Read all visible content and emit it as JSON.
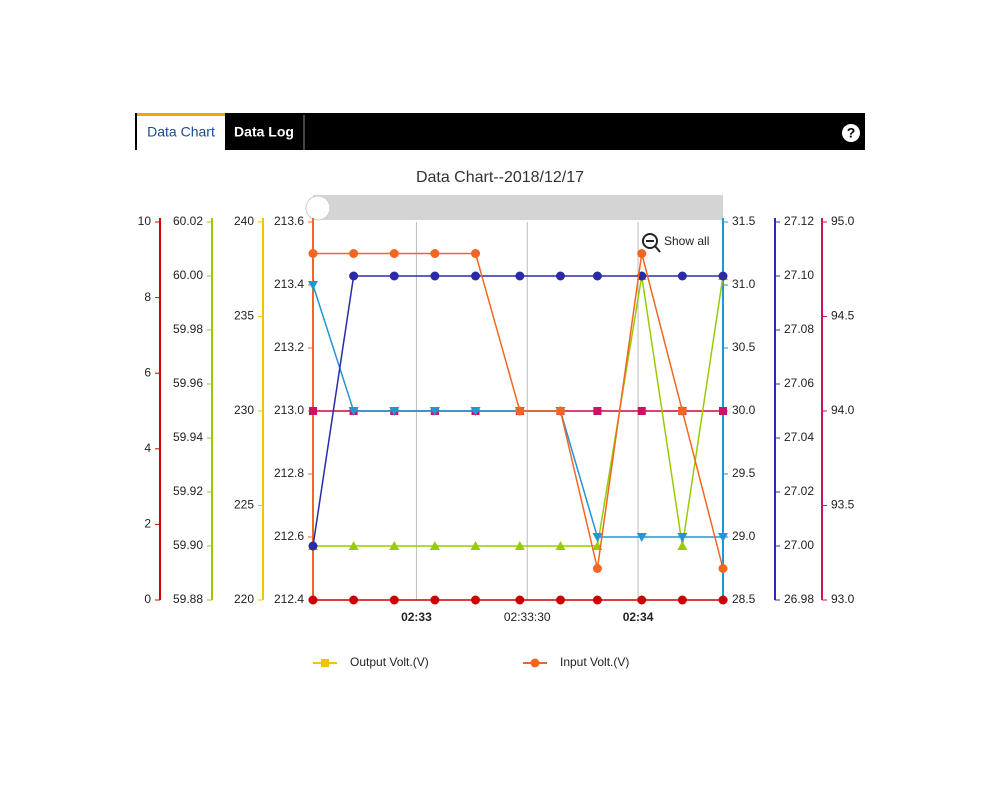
{
  "tabs": [
    "Data Chart",
    "Data Log"
  ],
  "help": "?",
  "chart_data": {
    "type": "line",
    "title": "Data Chart--2018/12/17",
    "zoom_button": "Show all",
    "x": [
      -28,
      -17,
      -6,
      5,
      16,
      28,
      39,
      49,
      61,
      72,
      83
    ],
    "xlim": [
      -28,
      83
    ],
    "xticks": [
      {
        "value": 0,
        "label": "02:33"
      },
      {
        "value": 30,
        "label": "02:33:30"
      },
      {
        "value": 60,
        "label": "02:34"
      }
    ],
    "grid": true,
    "axes": [
      {
        "side": "left",
        "color": "#cc0000",
        "ylim": [
          0,
          10
        ],
        "yticks": [
          0,
          2,
          4,
          6,
          8,
          10
        ]
      },
      {
        "side": "left",
        "color": "#99cc00",
        "ylim": [
          59.88,
          60.02
        ],
        "yticks": [
          59.88,
          {
            "value": 59.9,
            "label": "59.90"
          },
          59.92,
          59.94,
          59.96,
          59.98,
          {
            "value": 60,
            "label": "60.00"
          },
          60.02
        ]
      },
      {
        "side": "left",
        "color": "#f2c500",
        "ylim": [
          220,
          240
        ],
        "yticks": [
          220,
          225,
          230,
          235,
          240
        ]
      },
      {
        "side": "left",
        "color": "#f26522",
        "ylim": [
          212.4,
          213.6
        ],
        "yticks": [
          212.4,
          212.6,
          212.8,
          {
            "value": 213,
            "label": "213.0"
          },
          213.2,
          213.4,
          213.6
        ]
      },
      {
        "side": "right",
        "color": "#2196d3",
        "ylim": [
          28.5,
          31.5
        ],
        "yticks": [
          28.5,
          {
            "value": 29,
            "label": "29.0"
          },
          29.5,
          {
            "value": 30,
            "label": "30.0"
          },
          30.5,
          {
            "value": 31,
            "label": "31.0"
          },
          31.5
        ]
      },
      {
        "side": "right",
        "color": "#2b2ba8",
        "ylim": [
          26.98,
          27.12
        ],
        "yticks": [
          26.98,
          {
            "value": 27,
            "label": "27.00"
          },
          27.02,
          27.04,
          27.06,
          27.08,
          {
            "value": 27.1,
            "label": "27.10"
          },
          27.12
        ]
      },
      {
        "side": "right",
        "color": "#cc1166",
        "ylim": [
          93,
          95
        ],
        "yticks": [
          {
            "value": 93,
            "label": "93.0"
          },
          93.5,
          {
            "value": 94,
            "label": "94.0"
          },
          94.5,
          {
            "value": 95,
            "label": "95.0"
          }
        ]
      }
    ],
    "series": [
      {
        "color": "#cc0000",
        "axis": 0,
        "marker": "circle",
        "values": [
          0,
          0,
          0,
          0,
          0,
          0,
          0,
          0,
          0,
          0,
          0
        ]
      },
      {
        "name": "Output Volt.(V)",
        "color": "#f2c500",
        "axis": 2,
        "marker": "square",
        "values": [
          230,
          230,
          230,
          230,
          230,
          230,
          230,
          230,
          230,
          230,
          230
        ]
      },
      {
        "color": "#cc1166",
        "axis": 6,
        "marker": "square",
        "values": [
          94,
          94,
          94,
          94,
          94,
          94,
          94,
          94,
          94,
          94,
          94
        ]
      },
      {
        "color": "#99cc00",
        "axis": 1,
        "marker": "triangle",
        "values": [
          59.9,
          59.9,
          59.9,
          59.9,
          59.9,
          59.9,
          59.9,
          59.9,
          60,
          59.9,
          60
        ]
      },
      {
        "color": "#2196d3",
        "axis": 4,
        "marker": "triangle-down",
        "values": [
          31,
          30,
          30,
          30,
          30,
          30,
          30,
          29,
          29,
          29,
          29
        ]
      },
      {
        "color": "#2b2ba8",
        "axis": 5,
        "marker": "circle",
        "values": [
          27,
          27.1,
          27.1,
          27.1,
          27.1,
          27.1,
          27.1,
          27.1,
          27.1,
          27.1,
          27.1
        ]
      },
      {
        "name": "Input Volt.(V)",
        "color": "#f26522",
        "axis": 3,
        "marker": "circle",
        "values": [
          213.5,
          213.5,
          213.5,
          213.5,
          213.5,
          213,
          213,
          212.5,
          213.5,
          213,
          212.5
        ]
      }
    ]
  }
}
